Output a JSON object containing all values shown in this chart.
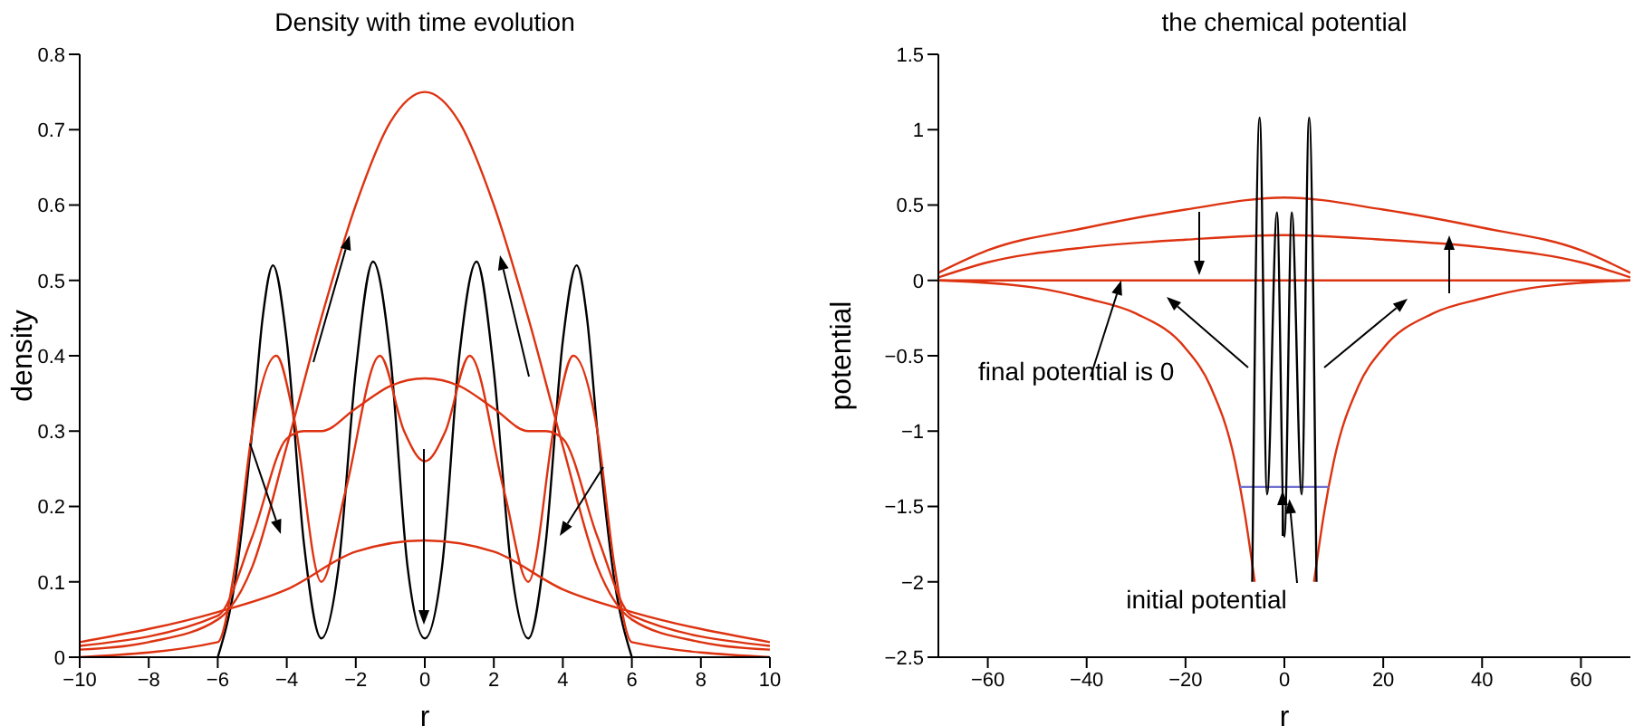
{
  "chart_data": [
    {
      "type": "line",
      "title": "Density with time evolution",
      "xlabel": "r",
      "ylabel": "density",
      "xlim": [
        -10,
        10
      ],
      "xticks": [
        -10,
        -8,
        -6,
        -4,
        -2,
        0,
        2,
        4,
        6,
        8,
        10
      ],
      "ylim": [
        0,
        0.8
      ],
      "yticks": [
        0,
        0.1,
        0.2,
        0.3,
        0.4,
        0.5,
        0.6,
        0.7,
        0.8
      ],
      "series": [
        {
          "color": "#000000",
          "x": [
            -6,
            -5.5,
            -5,
            -4.7,
            -4.4,
            -4,
            -3.5,
            -3,
            -2.5,
            -2,
            -1.5,
            -1,
            -0.5,
            0,
            0.5,
            1,
            1.5,
            2,
            2.5,
            3,
            3.5,
            4,
            4.4,
            4.7,
            5,
            5.5,
            6
          ],
          "values": [
            0,
            0.1,
            0.3,
            0.45,
            0.52,
            0.42,
            0.15,
            0.025,
            0.12,
            0.38,
            0.525,
            0.4,
            0.12,
            0.025,
            0.12,
            0.4,
            0.525,
            0.38,
            0.12,
            0.025,
            0.15,
            0.42,
            0.52,
            0.45,
            0.3,
            0.1,
            0
          ]
        },
        {
          "color": "#dd3311",
          "x": [
            -10,
            -6,
            -5.5,
            -5,
            -4.3,
            -3.8,
            -3,
            -2.3,
            -1.3,
            -0.6,
            0,
            0.6,
            1.3,
            2.3,
            3,
            3.8,
            4.3,
            5,
            5.5,
            6,
            10
          ],
          "values": [
            0,
            0.02,
            0.12,
            0.3,
            0.4,
            0.32,
            0.1,
            0.22,
            0.4,
            0.3,
            0.26,
            0.3,
            0.4,
            0.22,
            0.1,
            0.32,
            0.4,
            0.3,
            0.12,
            0.02,
            0
          ]
        },
        {
          "color": "#dd3311",
          "x": [
            -10,
            -6,
            -5,
            -4,
            -3.5,
            -3,
            -2,
            -1,
            0,
            1,
            2,
            3,
            3.5,
            4,
            5,
            6,
            10
          ],
          "values": [
            0.015,
            0.055,
            0.16,
            0.29,
            0.3,
            0.3,
            0.33,
            0.36,
            0.37,
            0.36,
            0.33,
            0.3,
            0.3,
            0.29,
            0.16,
            0.055,
            0.015
          ]
        },
        {
          "color": "#dd3311",
          "x": [
            -10,
            -6,
            -4,
            -2,
            0,
            2,
            4,
            6,
            10
          ],
          "values": [
            0.02,
            0.06,
            0.09,
            0.14,
            0.155,
            0.14,
            0.09,
            0.06,
            0.02
          ]
        },
        {
          "color": "#dd3311",
          "x": [
            -10,
            -8,
            -6,
            -5,
            -4,
            -3,
            -2,
            -1,
            0,
            1,
            2,
            3,
            4,
            5,
            6,
            8,
            10
          ],
          "values": [
            0.01,
            0.02,
            0.05,
            0.12,
            0.28,
            0.45,
            0.6,
            0.71,
            0.75,
            0.71,
            0.6,
            0.45,
            0.28,
            0.12,
            0.05,
            0.02,
            0.01
          ]
        }
      ]
    },
    {
      "type": "line",
      "title": "the chemical potential",
      "xlabel": "r",
      "ylabel": "potential",
      "xlim": [
        -70,
        70
      ],
      "xticks": [
        -60,
        -40,
        -20,
        0,
        20,
        40,
        60
      ],
      "ylim": [
        -2.5,
        1.5
      ],
      "yticks": [
        -2.5,
        -2,
        -1.5,
        -1,
        -0.5,
        0,
        0.5,
        1,
        1.5
      ],
      "annotations": [
        {
          "text": "final potential is 0",
          "x": -33,
          "y": 0
        },
        {
          "text": "initial potential",
          "x": 1,
          "y": -1.45
        }
      ],
      "series": [
        {
          "color": "#dd3311",
          "x": [
            -70,
            -50,
            -40,
            -30,
            -20,
            -15,
            -10,
            -8,
            -6
          ],
          "values": [
            0,
            -0.05,
            -0.12,
            -0.22,
            -0.45,
            -0.7,
            -1.2,
            -1.55,
            -2
          ]
        },
        {
          "color": "#dd3311",
          "x": [
            6,
            8,
            10,
            15,
            20,
            30,
            40,
            50,
            70
          ],
          "values": [
            -2,
            -1.55,
            -1.2,
            -0.7,
            -0.45,
            -0.22,
            -0.12,
            -0.05,
            0
          ]
        },
        {
          "color": "#7070d0",
          "x": [
            -9,
            9
          ],
          "values": [
            -1.37,
            -1.37
          ]
        },
        {
          "color": "#dd3311",
          "x": [
            -70,
            70
          ],
          "values": [
            0,
            0
          ]
        },
        {
          "color": "#dd3311",
          "x": [
            -70,
            -60,
            -40,
            -20,
            0,
            20,
            40,
            60,
            70
          ],
          "values": [
            0.05,
            0.2,
            0.35,
            0.47,
            0.55,
            0.47,
            0.35,
            0.2,
            0.05
          ]
        },
        {
          "color": "#dd3311",
          "x": [
            -70,
            -60,
            -40,
            -20,
            0,
            20,
            40,
            60,
            70
          ],
          "values": [
            0.02,
            0.12,
            0.22,
            0.27,
            0.3,
            0.27,
            0.22,
            0.12,
            0.02
          ]
        },
        {
          "color": "#000000",
          "x": [
            -6.5,
            -5,
            -3.5,
            -1.5,
            0,
            1.5,
            3.5,
            5,
            6.5
          ],
          "values": [
            -2,
            1.08,
            -1.42,
            0.45,
            -1.7,
            0.45,
            -1.42,
            1.08,
            -2
          ]
        }
      ]
    }
  ]
}
